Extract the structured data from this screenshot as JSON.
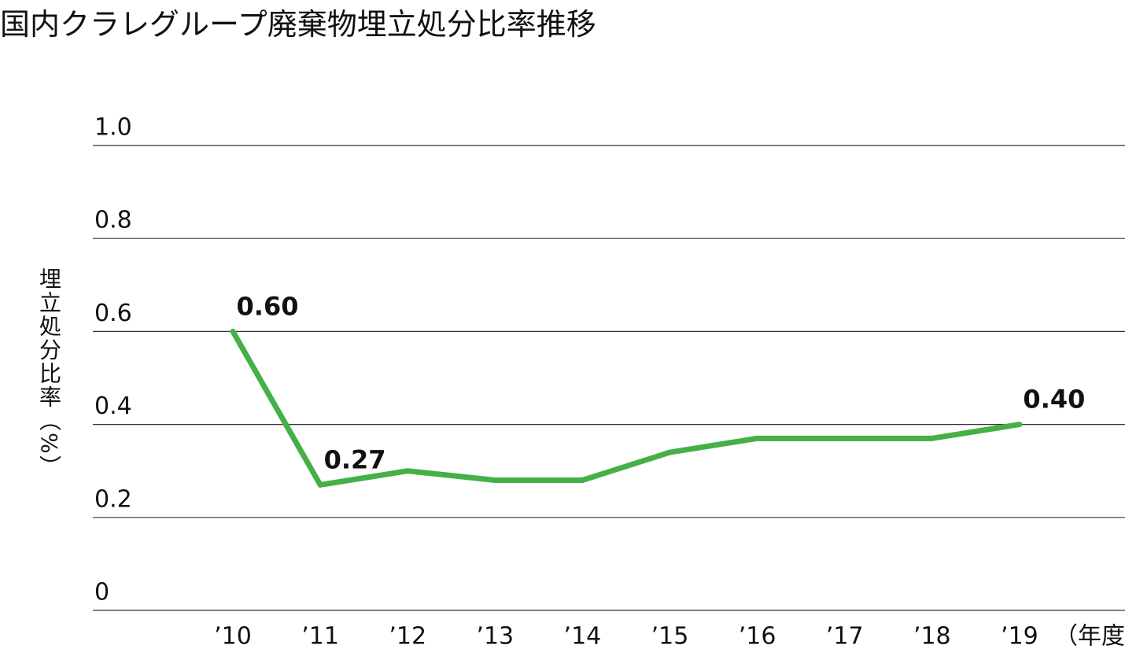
{
  "chart_data": {
    "type": "line",
    "title": "国内クラレグループ廃棄物埋立処分比率推移",
    "y_label": "埋立処分比率（%）",
    "x_unit": "（年度）",
    "categories": [
      "’10",
      "’11",
      "’12",
      "’13",
      "’14",
      "’15",
      "’16",
      "’17",
      "’18",
      "’19"
    ],
    "values": [
      0.6,
      0.27,
      0.3,
      0.28,
      0.28,
      0.34,
      0.37,
      0.37,
      0.37,
      0.4
    ],
    "value_labels": [
      "0.60",
      "0.27",
      null,
      null,
      null,
      null,
      null,
      null,
      null,
      "0.40"
    ],
    "color": "#45b048",
    "ylim": [
      0,
      1
    ],
    "yticks": [
      0,
      0.2,
      0.4,
      0.6,
      0.8,
      {
        "value": 1,
        "label": "1.0"
      }
    ],
    "grid": true
  }
}
